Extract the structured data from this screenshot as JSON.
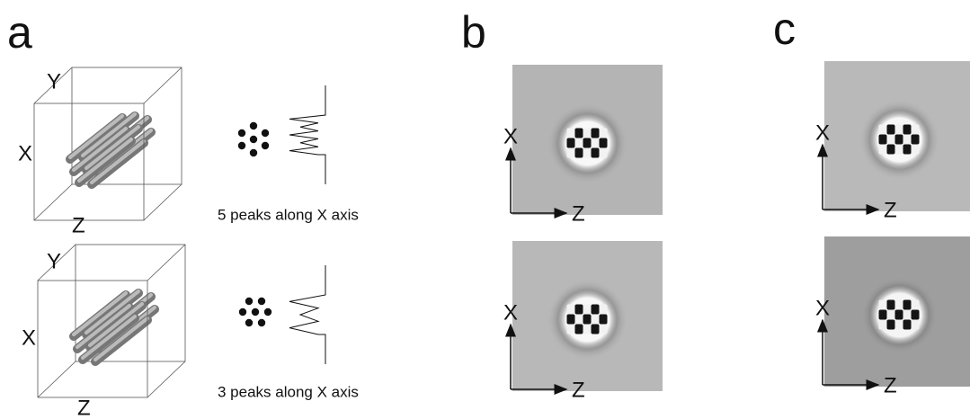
{
  "panels": [
    {
      "label": "a",
      "rows": [
        {
          "axes": [
            "Y",
            "X",
            "Z"
          ],
          "caption": "5 peaks along X axis"
        },
        {
          "axes": [
            "Y",
            "X",
            "Z"
          ],
          "caption": "3 peaks along X axis"
        }
      ]
    },
    {
      "label": "b",
      "rows": [
        {
          "axes": [
            "X",
            "Z"
          ]
        },
        {
          "axes": [
            "X",
            "Z"
          ]
        }
      ]
    },
    {
      "label": "c",
      "rows": [
        {
          "axes": [
            "X",
            "Z"
          ]
        },
        {
          "axes": [
            "X",
            "Z"
          ]
        }
      ]
    }
  ]
}
